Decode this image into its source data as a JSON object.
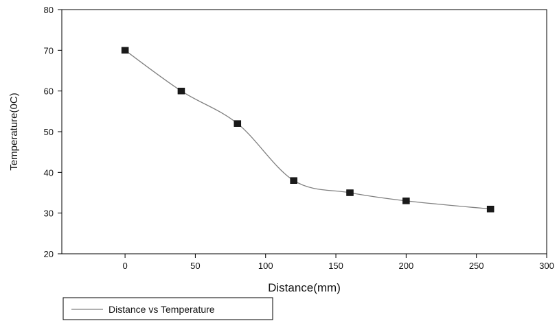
{
  "chart_data": {
    "type": "line",
    "xlabel": "Distance(mm)",
    "ylabel": "Temperature(0C)",
    "xlim": [
      -45,
      300
    ],
    "ylim": [
      20,
      80
    ],
    "xticks": [
      0,
      50,
      100,
      150,
      200,
      250,
      300
    ],
    "yticks": [
      20,
      30,
      40,
      50,
      60,
      70,
      80
    ],
    "x": [
      0,
      40,
      80,
      120,
      160,
      200,
      260
    ],
    "series": [
      {
        "name": "Distance vs Temperature",
        "values": [
          70,
          60,
          52,
          38,
          35,
          33,
          31
        ]
      }
    ],
    "marker": "square",
    "line_color": "#808080",
    "marker_color": "#1a1a1a",
    "grid": false,
    "legend_position": "bottom-left"
  }
}
